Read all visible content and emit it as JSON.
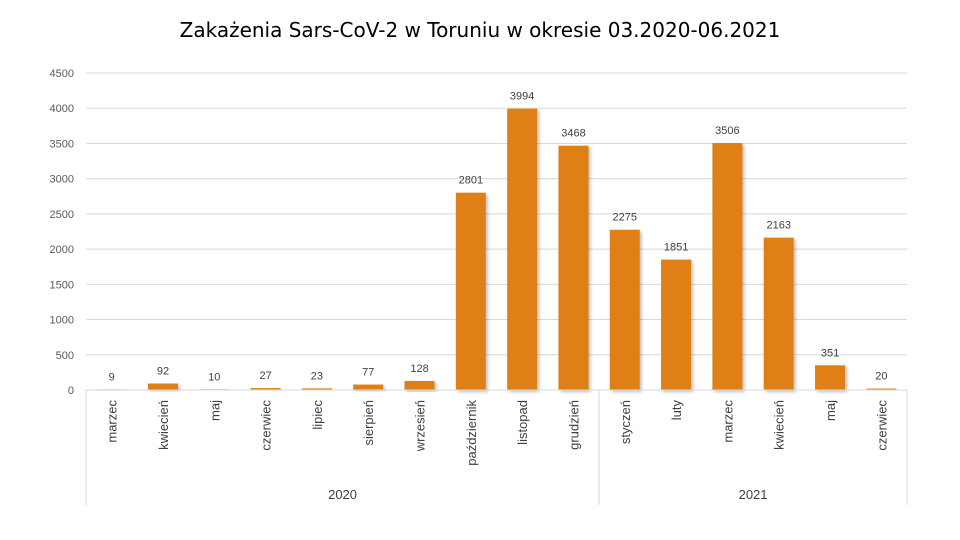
{
  "chart_data": {
    "type": "bar",
    "title": "Zakażenia Sars-CoV-2 w Toruniu w okresie 03.2020-06.2021",
    "categories": [
      "marzec",
      "kwiecień",
      "maj",
      "czerwiec",
      "lipiec",
      "sierpień",
      "wrzesień",
      "październik",
      "listopad",
      "grudzień",
      "styczeń",
      "luty",
      "marzec",
      "kwiecień",
      "maj",
      "czerwiec"
    ],
    "groups": [
      {
        "label": "2020",
        "count": 10
      },
      {
        "label": "2021",
        "count": 6
      }
    ],
    "values": [
      9,
      92,
      10,
      27,
      23,
      77,
      128,
      2801,
      3994,
      3468,
      2275,
      1851,
      3506,
      2163,
      351,
      20
    ],
    "yticks": [
      0,
      500,
      1000,
      1500,
      2000,
      2500,
      3000,
      3500,
      4000,
      4500
    ],
    "ylim": [
      0,
      4500
    ],
    "grid": true,
    "bar_color": "#E07F12",
    "xlabel": "",
    "ylabel": ""
  }
}
